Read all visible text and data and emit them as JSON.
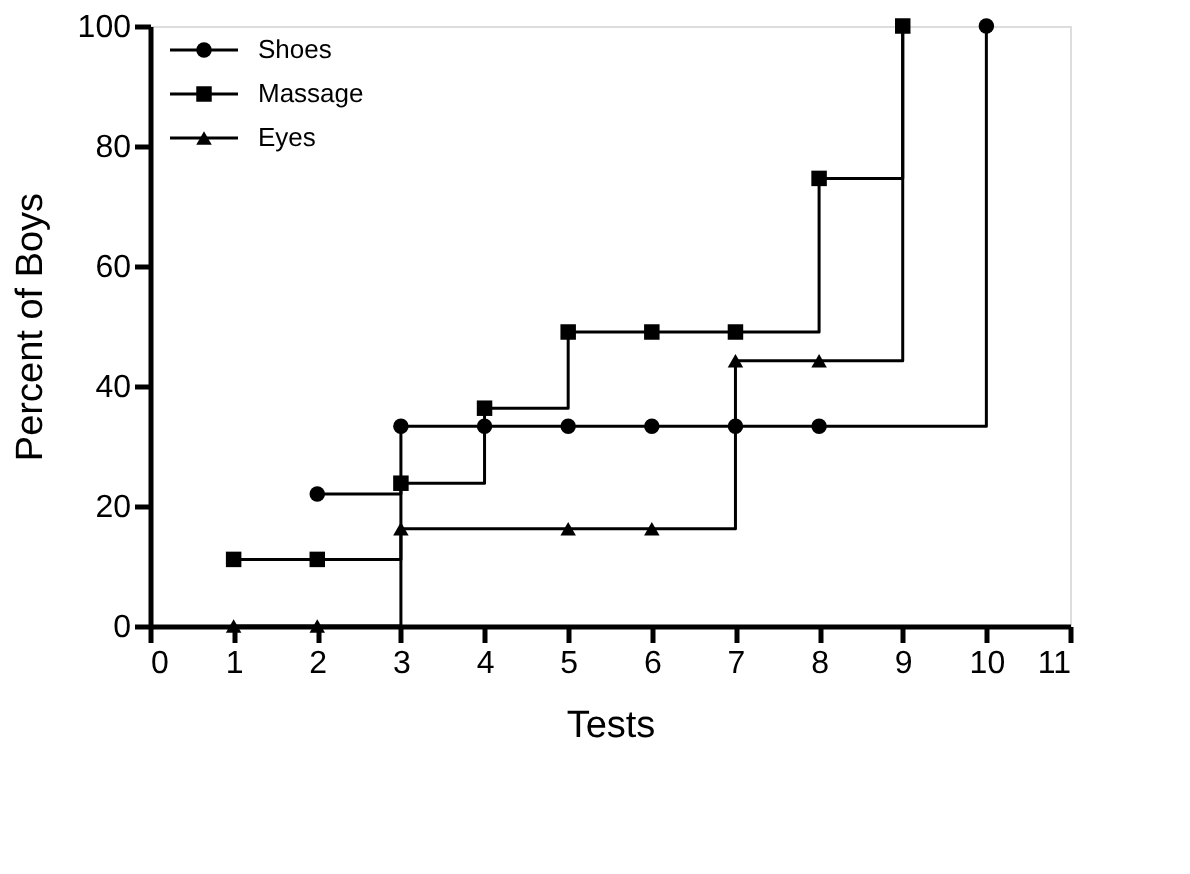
{
  "chart_data": {
    "type": "step",
    "xlabel": "Tests",
    "ylabel": "Percent of Boys",
    "xlim": [
      0,
      11
    ],
    "xticks": [
      0,
      1,
      2,
      3,
      4,
      5,
      6,
      7,
      8,
      9,
      10,
      11
    ],
    "ylim": [
      0,
      100
    ],
    "yticks": [
      0,
      20,
      40,
      60,
      80,
      100
    ],
    "grid": false,
    "legend": "top left",
    "line_style": "solid",
    "series": [
      {
        "name": "Shoes",
        "color": "#000000",
        "marker": "circle",
        "x": [
          2,
          3,
          4,
          5,
          6,
          7,
          8,
          10
        ],
        "values": [
          22,
          33.3,
          33.3,
          33.3,
          33.3,
          33.3,
          33.3,
          100
        ]
      },
      {
        "name": "Massage",
        "color": "#000000",
        "marker": "square",
        "x": [
          1,
          2,
          3,
          4,
          5,
          6,
          7,
          8,
          9
        ],
        "values": [
          11.1,
          11.1,
          23.8,
          36.3,
          49,
          49,
          49,
          74.6,
          100
        ]
      },
      {
        "name": "Eyes",
        "color": "#000000",
        "marker": "triangle",
        "x": [
          1,
          2,
          3,
          5,
          6,
          7,
          8,
          9
        ],
        "values": [
          0,
          0,
          16.2,
          16.2,
          16.2,
          44.2,
          44.2,
          100
        ]
      }
    ]
  }
}
